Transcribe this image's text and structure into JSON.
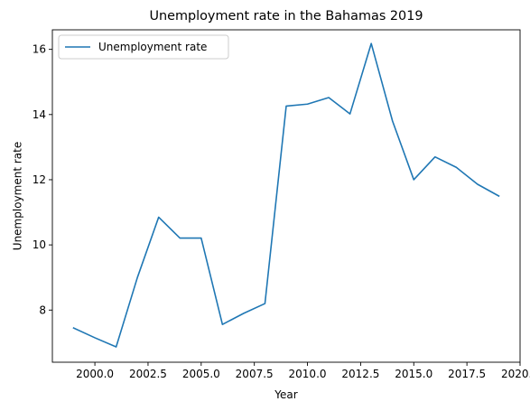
{
  "chart_data": {
    "type": "line",
    "title": "Unemployment rate in the Bahamas 2019",
    "xlabel": "Year",
    "ylabel": "Unemployment rate",
    "xlim": [
      1998.0,
      2020.0
    ],
    "ylim": [
      6.4,
      16.6
    ],
    "x_ticks": [
      2000.0,
      2002.5,
      2005.0,
      2007.5,
      2010.0,
      2012.5,
      2015.0,
      2017.5,
      2020.0
    ],
    "x_tick_labels": [
      "2000.0",
      "2002.5",
      "2005.0",
      "2007.5",
      "2010.0",
      "2012.5",
      "2015.0",
      "2017.5",
      "2020.0"
    ],
    "y_ticks": [
      8,
      10,
      12,
      14,
      16
    ],
    "y_tick_labels": [
      "8",
      "10",
      "12",
      "14",
      "16"
    ],
    "grid": false,
    "legend_position": "top-left",
    "series": [
      {
        "name": "Unemployment rate",
        "color": "#1f77b4",
        "x": [
          1999,
          2000,
          2001,
          2002,
          2003,
          2004,
          2005,
          2006,
          2007,
          2008,
          2009,
          2010,
          2011,
          2012,
          2013,
          2014,
          2015,
          2016,
          2017,
          2018,
          2019
        ],
        "y": [
          7.45,
          7.15,
          6.87,
          9.0,
          10.85,
          10.21,
          10.21,
          7.56,
          7.9,
          8.2,
          14.26,
          14.32,
          14.52,
          14.02,
          16.18,
          13.8,
          12.0,
          12.7,
          12.38,
          11.86,
          11.5
        ]
      }
    ]
  }
}
